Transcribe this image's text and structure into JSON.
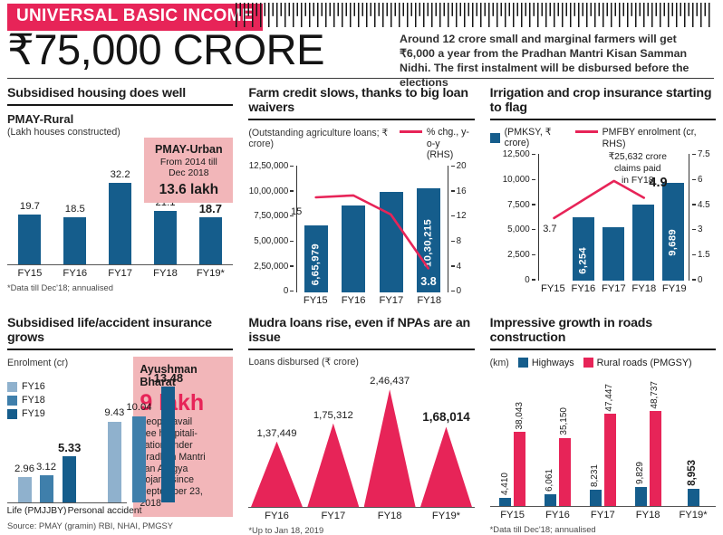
{
  "header": {
    "badge": "UNIVERSAL BASIC INCOME",
    "amount": "₹75,000 CRORE",
    "description": "Around 12 crore small and marginal farmers will get ₹6,000 a year from the Pradhan Mantri Kisan Samman Nidhi. The first instalment will be disbursed before the elections"
  },
  "colors": {
    "crimson": "#e72458",
    "dark_blue": "#155d8c",
    "mid_blue": "#3f7fab",
    "light_blue": "#8fb1cd",
    "pink_box": "#f2b6b9"
  },
  "chart_data": [
    {
      "type": "bar",
      "title": "Subsidised housing does well",
      "series_label": "PMAY-Rural",
      "unit": "(Lakh houses constructed)",
      "categories": [
        "FY15",
        "FY16",
        "FY17",
        "FY18",
        "FY19*"
      ],
      "values": [
        19.7,
        18.5,
        32.2,
        21.1,
        18.7
      ],
      "value_labels": [
        "19.7",
        "18.5",
        "32.2",
        "21.1",
        "18.7"
      ],
      "ylim": [
        0,
        35
      ],
      "callout": {
        "title": "PMAY-Urban",
        "period": "From 2014 till\nDec 2018",
        "value": "13.6 lakh"
      },
      "footnote": "*Data till Dec'18; annualised"
    },
    {
      "type": "bar+line",
      "title": "Farm credit slows, thanks to big loan waivers",
      "subtitle": "(Outstanding agriculture loans; ₹ crore)",
      "line_legend": "% chg., y-o-y\n(RHS)",
      "categories": [
        "FY15",
        "FY16",
        "FY17",
        "FY18"
      ],
      "bars": [
        665979,
        860000,
        990000,
        1030215
      ],
      "bar_inside_labels": [
        "6,65,979",
        "",
        "",
        "10,30,215"
      ],
      "line": [
        15,
        15.3,
        12.3,
        3.8
      ],
      "line_first_label": "15",
      "line_last_label": "3.8",
      "left_axis": {
        "ticks": [
          "12,50,000",
          "10,00,000",
          "7,50,000",
          "5,00,000",
          "2,50,000",
          "0"
        ],
        "max": 1250000
      },
      "right_axis": {
        "ticks": [
          "20",
          "16",
          "12",
          "8",
          "4",
          "0"
        ],
        "max": 20
      }
    },
    {
      "type": "bar+line",
      "title": "Irrigation and crop insurance starting to flag",
      "bar_legend": "(PMKSY, ₹ crore)",
      "line_legend": "PMFBY enrolment (cr, RHS)",
      "categories": [
        "FY15",
        "FY16",
        "FY17",
        "FY18",
        "FY19"
      ],
      "bars": [
        null,
        6254,
        5300,
        7550,
        9689
      ],
      "bar_inside_labels": [
        "",
        "6,254",
        "",
        "",
        "9,689"
      ],
      "line": [
        3.7,
        4.8,
        5.9,
        4.9
      ],
      "line_first_label": "3.7",
      "line_last_label": "4.9",
      "annotation": "₹25,632 crore\nclaims paid\nin FY18",
      "left_axis": {
        "ticks": [
          "12,500",
          "10,000",
          "7,500",
          "5,000",
          "2,500",
          "0"
        ],
        "max": 12500
      },
      "right_axis": {
        "ticks": [
          "7.5",
          "6",
          "4.5",
          "3",
          "1.5",
          "0"
        ],
        "max": 7.5
      }
    },
    {
      "type": "grouped-bar",
      "title": "Subsidised life/accident insurance grows",
      "subtitle": "Enrolment (cr)",
      "legend": [
        "FY16",
        "FY18",
        "FY19"
      ],
      "groups": [
        {
          "label": "Life (PMJJBY)",
          "values": [
            2.96,
            3.12,
            5.33
          ],
          "labels": [
            "2.96",
            "3.12",
            "5.33"
          ]
        },
        {
          "label": "Personal accident",
          "values": [
            9.43,
            10.04,
            13.48
          ],
          "labels": [
            "9.43",
            "10.04",
            "13.48"
          ]
        }
      ],
      "ylim": [
        0,
        14
      ],
      "callout": {
        "title": "Ayushman\nBharat",
        "big": "9 lakh",
        "body": "People avail\nfree hospitali-\nsation under\nPradhan Mantri\nJan Arogya\nYojana since\nSeptember 23,\n2018"
      },
      "source": "Source: PMAY (gramin) RBI, NHAI, PMGSY"
    },
    {
      "type": "area",
      "title": "Mudra loans rise, even if NPAs are an issue",
      "subtitle": "Loans disbursed (₹ crore)",
      "categories": [
        "FY16",
        "FY17",
        "FY18",
        "FY19*"
      ],
      "values": [
        137449,
        175312,
        246437,
        168014
      ],
      "value_labels": [
        "1,37,449",
        "1,75,312",
        "2,46,437",
        "1,68,014"
      ],
      "footnote": "*Up to Jan 18, 2019"
    },
    {
      "type": "grouped-bar",
      "title": "Impressive growth in roads construction",
      "unit": "(km)",
      "categories": [
        "FY15",
        "FY16",
        "FY17",
        "FY18",
        "FY19*"
      ],
      "series": [
        {
          "name": "Highways",
          "values": [
            4410,
            6061,
            8231,
            9829,
            8953
          ],
          "labels": [
            "4,410",
            "6,061",
            "8,231",
            "9,829",
            "8,953"
          ]
        },
        {
          "name": "Rural roads (PMGSY)",
          "values": [
            38043,
            35150,
            47447,
            48737,
            null
          ],
          "labels": [
            "38,043",
            "35,150",
            "47,447",
            "48,737",
            ""
          ]
        }
      ],
      "ylim": [
        0,
        50000
      ],
      "footnote": "*Data till Dec'18; annualised"
    }
  ]
}
